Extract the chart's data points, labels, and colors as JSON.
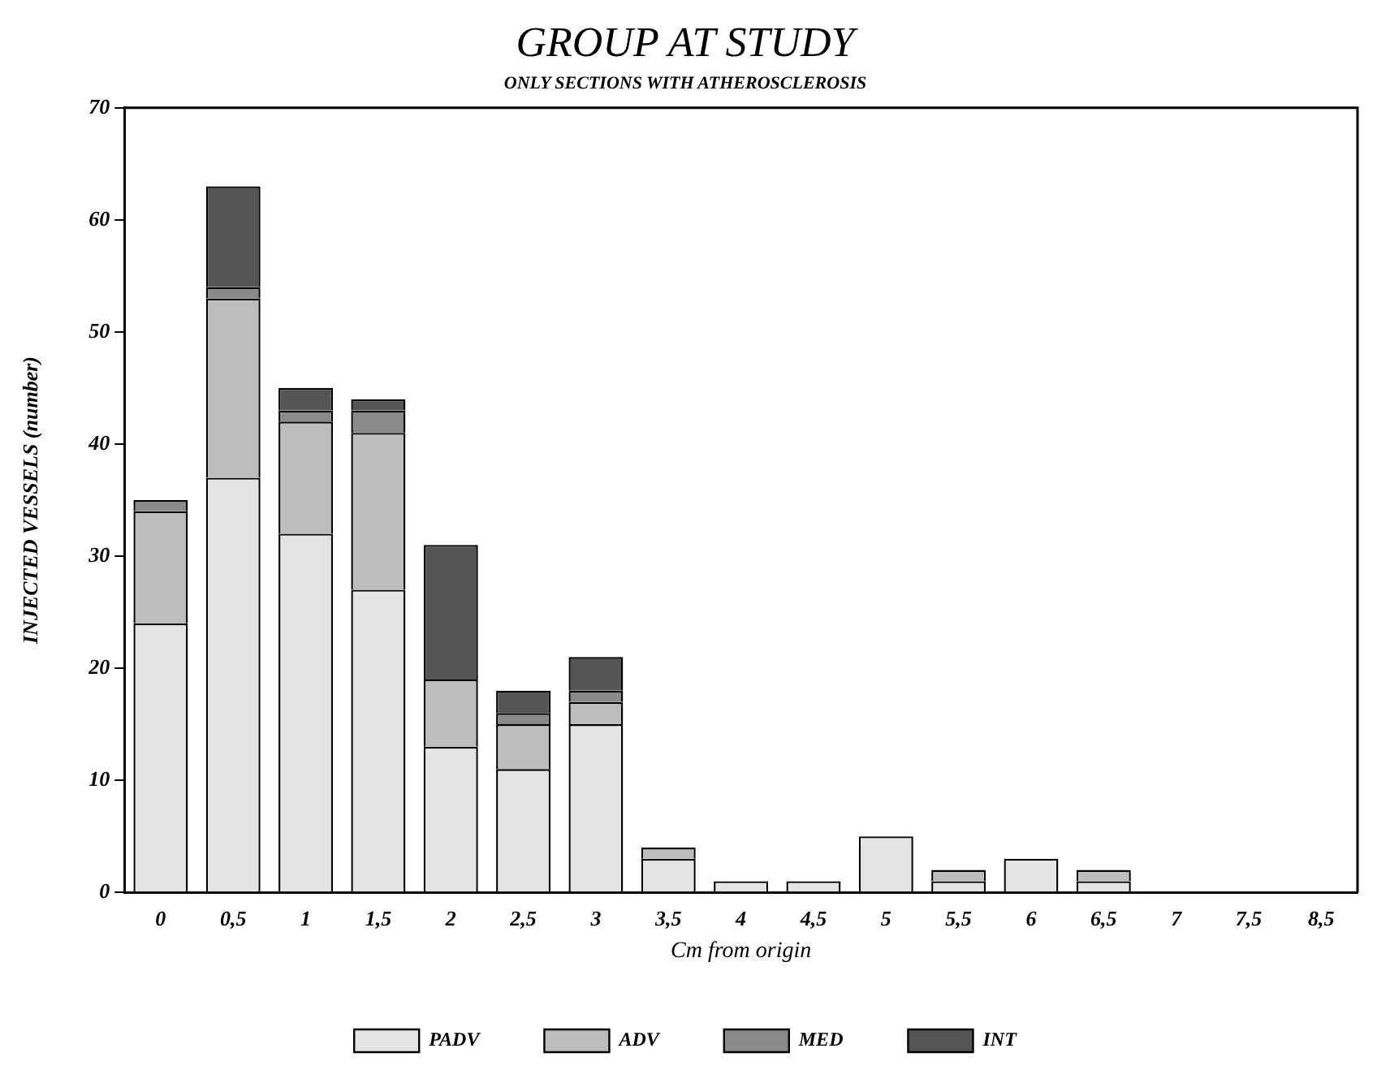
{
  "chart_data": {
    "type": "bar",
    "title": "GROUP AT STUDY",
    "subtitle": "ONLY SECTIONS WITH ATHEROSCLEROSIS",
    "xlabel": "Cm from origin",
    "ylabel": "INJECTED VESSELS (number)",
    "categories": [
      "0",
      "0,5",
      "1",
      "1,5",
      "2",
      "2,5",
      "3",
      "3,5",
      "4",
      "4,5",
      "5",
      "5,5",
      "6",
      "6,5",
      "7",
      "7,5",
      "8,5"
    ],
    "series": [
      {
        "name": "PADV",
        "color": "#e4e4e4",
        "values": [
          24,
          37,
          32,
          27,
          13,
          11,
          15,
          3,
          1,
          1,
          5,
          1,
          3,
          1,
          0,
          0,
          0
        ]
      },
      {
        "name": "ADV",
        "color": "#bdbdbd",
        "values": [
          10,
          16,
          10,
          14,
          6,
          4,
          2,
          1,
          0,
          0,
          0,
          1,
          0,
          1,
          0,
          0,
          0
        ]
      },
      {
        "name": "MED",
        "color": "#8a8a8a",
        "values": [
          1,
          1,
          1,
          2,
          0,
          1,
          1,
          0,
          0,
          0,
          0,
          0,
          0,
          0,
          0,
          0,
          0
        ]
      },
      {
        "name": "INT",
        "color": "#555555",
        "values": [
          0,
          9,
          2,
          1,
          12,
          2,
          3,
          0,
          0,
          0,
          0,
          0,
          0,
          0,
          0,
          0,
          0
        ]
      }
    ],
    "stacked": true,
    "ylim": [
      0,
      70
    ],
    "yticks": [
      0,
      10,
      20,
      30,
      40,
      50,
      60,
      70
    ],
    "grid": false,
    "legend": "bottom"
  }
}
